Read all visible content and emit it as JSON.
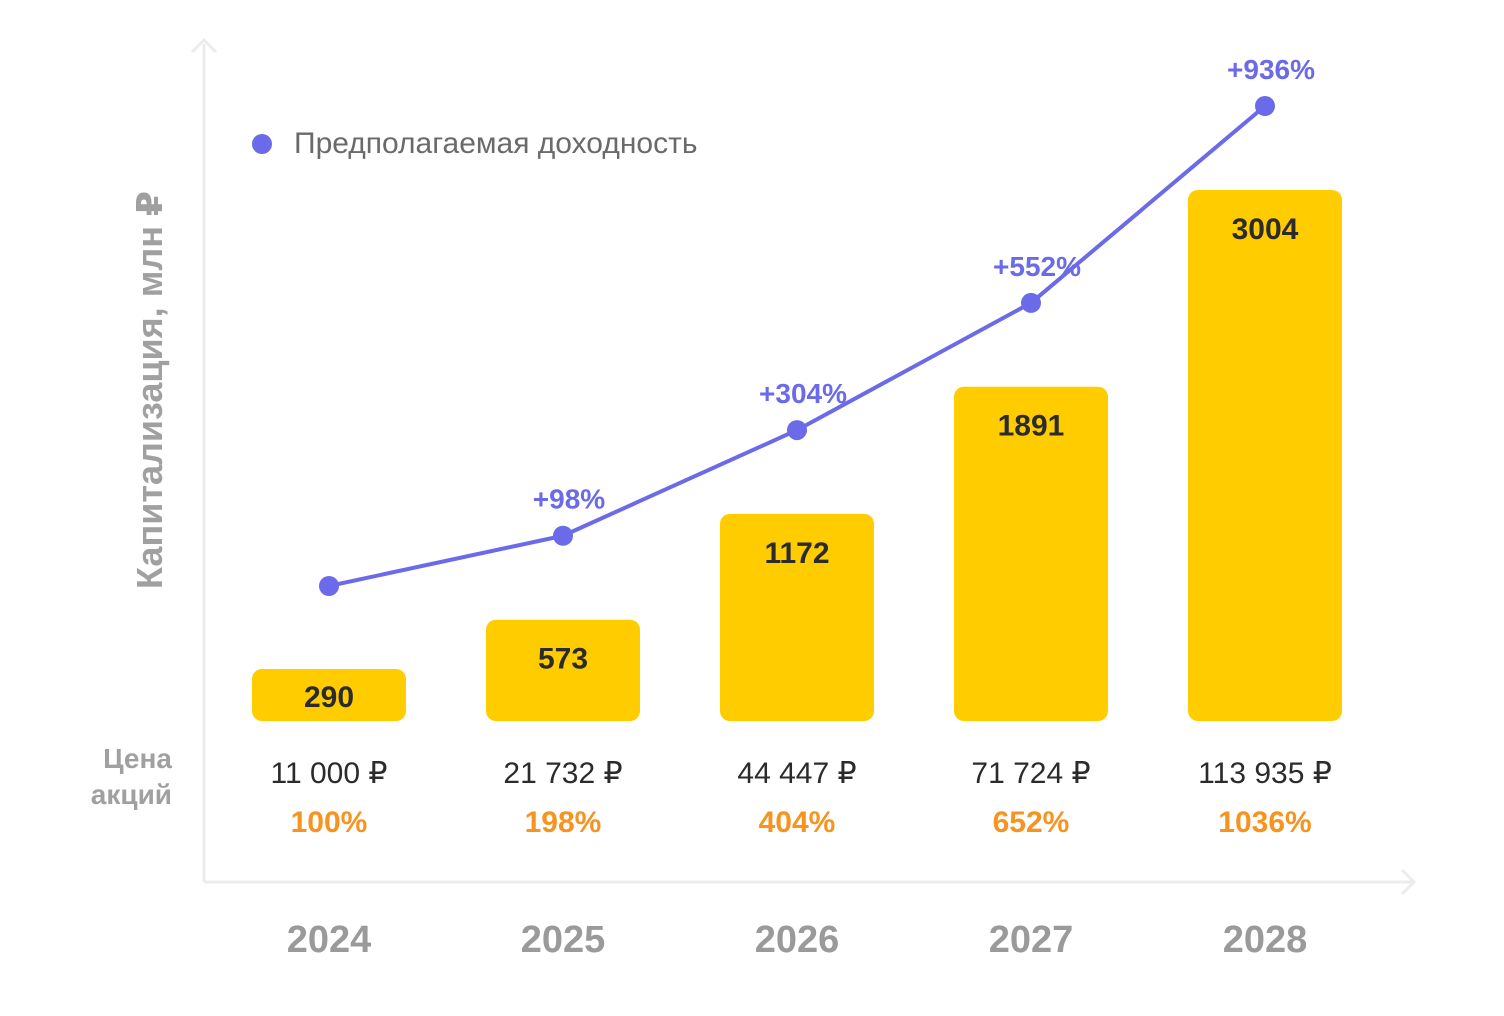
{
  "colors": {
    "bar": "#ffcc00",
    "line": "#6b6ae8",
    "axis": "#ececec",
    "year": "#9a9a9a",
    "share_pct": "#f7931e",
    "text": "#2b2b2b"
  },
  "legend": {
    "icon": "dot-icon",
    "label": "Предполагаемая доходность"
  },
  "row_label": {
    "line1": "Цена",
    "line2": "акций"
  },
  "chart_data": {
    "type": "bar",
    "title": "",
    "ylabel": "Капитализация, млн ₽",
    "xlabel": "",
    "categories": [
      "2024",
      "2025",
      "2026",
      "2027",
      "2028"
    ],
    "ylim": [
      0,
      3500
    ],
    "series": [
      {
        "name": "Капитализация, млн ₽",
        "type": "bar",
        "values": [
          290,
          573,
          1172,
          1891,
          3004
        ],
        "labels": [
          "290",
          "573",
          "1172",
          "1891",
          "3004"
        ]
      },
      {
        "name": "Предполагаемая доходность",
        "type": "line",
        "values": [
          0,
          98,
          304,
          552,
          936
        ],
        "labels": [
          "",
          "+98%",
          "+304%",
          "+552%",
          "+936%"
        ]
      }
    ],
    "share_price": [
      "11 000 ₽",
      "21 732 ₽",
      "44 447 ₽",
      "71 724 ₽",
      "113 935 ₽"
    ],
    "share_price_pct": [
      "100%",
      "198%",
      "404%",
      "652%",
      "1036%"
    ]
  }
}
